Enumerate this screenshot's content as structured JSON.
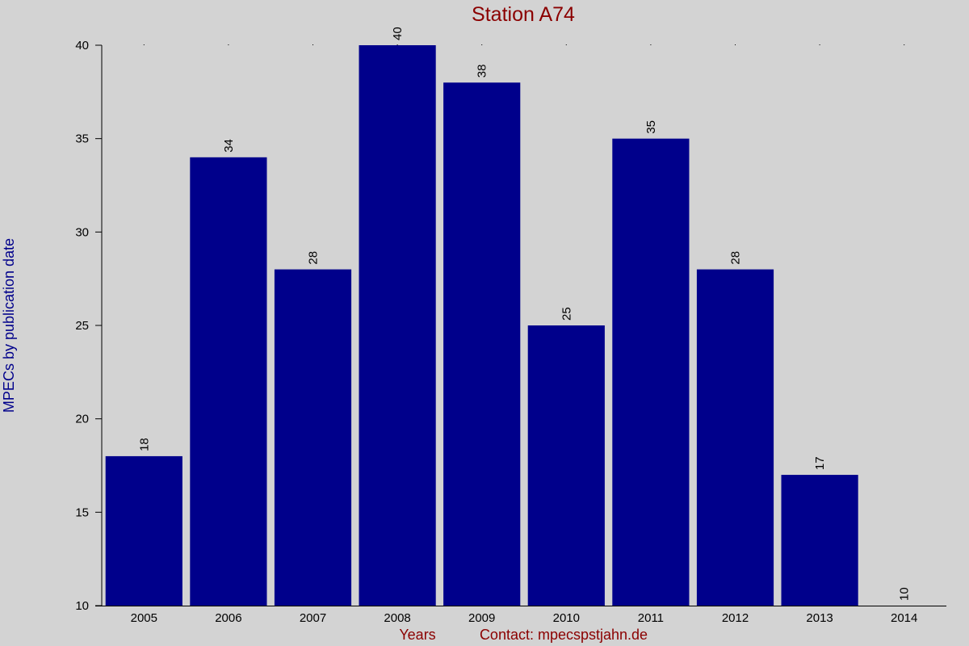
{
  "chart_data": {
    "type": "bar",
    "title": "Station A74",
    "xlabel": "Years",
    "ylabel": "MPECs by publication date",
    "footer_text": "Contact: mpecspstjahn.de",
    "categories": [
      "2005",
      "2006",
      "2007",
      "2008",
      "2009",
      "2010",
      "2011",
      "2012",
      "2013",
      "2014"
    ],
    "values": [
      18,
      34,
      28,
      40,
      38,
      25,
      35,
      28,
      17,
      10
    ],
    "data_labels": [
      "18",
      "34",
      "28",
      "40",
      "38",
      "25",
      "35",
      "28",
      "17",
      "10"
    ],
    "ylim": [
      10,
      40
    ],
    "yticks": [
      10,
      15,
      20,
      25,
      30,
      35,
      40
    ],
    "ytick_labels": [
      "10",
      "15",
      "20",
      "25",
      "30",
      "35",
      "40"
    ],
    "grid": false,
    "legend": "none",
    "colors": {
      "bar": "#00008b",
      "title": "#8b0000",
      "ylabel": "#00008b",
      "xlabel": "#8b0000",
      "background": "#d3d3d3",
      "axis": "#000000"
    }
  }
}
